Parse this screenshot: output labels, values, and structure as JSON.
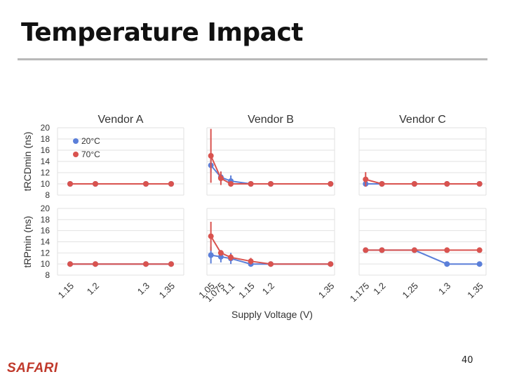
{
  "slide": {
    "title": "Temperature Impact",
    "logo": "SAFARI",
    "page_number": "40"
  },
  "colors": {
    "series_20c": "#5b7fd9",
    "series_70c": "#d9534f",
    "grid": "#e2e2e2",
    "logo": "#c0392b"
  },
  "chart_data": {
    "type": "line",
    "layout": "2x3 panel grid",
    "xlabel": "Supply Voltage (V)",
    "legend": [
      "20°C",
      "70°C"
    ],
    "legend_placement": "top-left of first panel",
    "rows": [
      {
        "ylabel": "tRCDmin (ns)",
        "ylim": [
          8,
          20
        ],
        "yticks": [
          8,
          10,
          12,
          14,
          16,
          18,
          20
        ]
      },
      {
        "ylabel": "tRPmin (ns)",
        "ylim": [
          8,
          20
        ],
        "yticks": [
          8,
          10,
          12,
          14,
          16,
          18,
          20
        ]
      }
    ],
    "columns": [
      {
        "title": "Vendor A",
        "x": [
          1.15,
          1.2,
          1.3,
          1.35
        ],
        "xticks": [
          "1.15",
          "1.2",
          "1.3",
          "1.35"
        ],
        "xlim": [
          1.125,
          1.375
        ]
      },
      {
        "title": "Vendor B",
        "x": [
          1.05,
          1.075,
          1.1,
          1.15,
          1.2,
          1.35
        ],
        "xticks": [
          "1.05",
          "1.075",
          "1.1",
          "1.15",
          "1.2",
          "1.35"
        ],
        "xlim": [
          1.04,
          1.36
        ]
      },
      {
        "title": "Vendor C",
        "x": [
          1.175,
          1.2,
          1.25,
          1.3,
          1.35
        ],
        "xticks": [
          "1.175",
          "1.2",
          "1.25",
          "1.3",
          "1.35"
        ],
        "xlim": [
          1.165,
          1.36
        ]
      }
    ],
    "panels": [
      {
        "row": 0,
        "col": 0,
        "series": [
          {
            "name": "20°C",
            "values": [
              10,
              10,
              10,
              10
            ]
          },
          {
            "name": "70°C",
            "values": [
              10,
              10,
              10,
              10
            ]
          }
        ]
      },
      {
        "row": 0,
        "col": 1,
        "series": [
          {
            "name": "20°C",
            "values": [
              13.3,
              11.2,
              10.5,
              10,
              10,
              10
            ],
            "err": [
              1.2,
              1.0,
              1.0,
              0,
              0,
              0
            ]
          },
          {
            "name": "70°C",
            "values": [
              15,
              11,
              10,
              10,
              10,
              10
            ],
            "err": [
              4.8,
              1.2,
              0,
              0,
              0,
              0
            ]
          }
        ]
      },
      {
        "row": 0,
        "col": 2,
        "series": [
          {
            "name": "20°C",
            "values": [
              10,
              10,
              10,
              10,
              10
            ]
          },
          {
            "name": "70°C",
            "values": [
              10.8,
              10,
              10,
              10,
              10
            ],
            "err": [
              1.3,
              0,
              0,
              0,
              0
            ]
          }
        ]
      },
      {
        "row": 1,
        "col": 0,
        "series": [
          {
            "name": "20°C",
            "values": [
              10,
              10,
              10,
              10
            ]
          },
          {
            "name": "70°C",
            "values": [
              10,
              10,
              10,
              10
            ]
          }
        ]
      },
      {
        "row": 1,
        "col": 1,
        "series": [
          {
            "name": "20°C",
            "values": [
              11.6,
              11.3,
              11,
              10,
              10,
              10
            ],
            "err": [
              1.5,
              1.0,
              1.0,
              0,
              0,
              0
            ]
          },
          {
            "name": "70°C",
            "values": [
              15,
              12,
              11.2,
              10.5,
              10,
              10
            ],
            "err": [
              2.6,
              0.5,
              0.6,
              0.6,
              0,
              0
            ]
          }
        ]
      },
      {
        "row": 1,
        "col": 2,
        "series": [
          {
            "name": "20°C",
            "values": [
              12.5,
              12.5,
              12.5,
              10,
              10
            ]
          },
          {
            "name": "70°C",
            "values": [
              12.5,
              12.5,
              12.5,
              12.5,
              12.5
            ]
          }
        ]
      }
    ]
  }
}
